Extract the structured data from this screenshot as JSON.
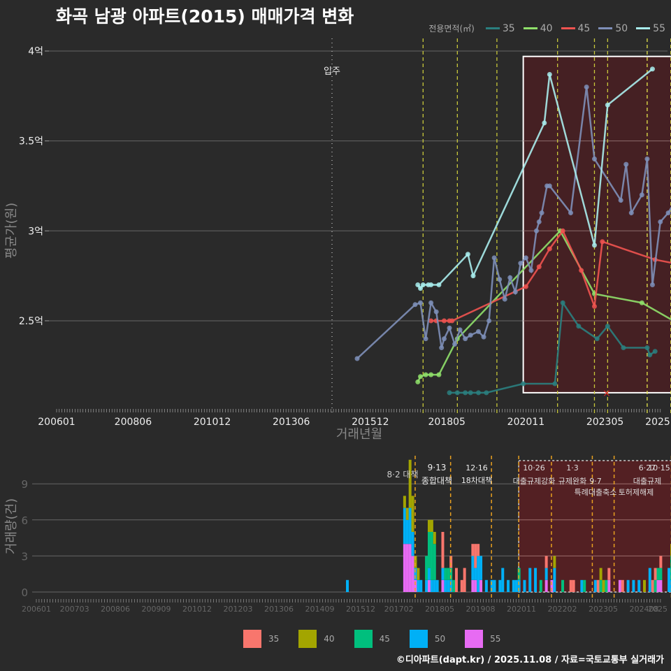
{
  "title": "화곡 남광 아파트(2015) 매매가격 변화",
  "legend_top": {
    "label": "전용면적(㎡)",
    "items": [
      {
        "label": "35",
        "color": "#2a7f7f"
      },
      {
        "label": "40",
        "color": "#8fe06a"
      },
      {
        "label": "45",
        "color": "#ef5350"
      },
      {
        "label": "50",
        "color": "#7e8fb8"
      },
      {
        "label": "55",
        "color": "#a8ecec"
      }
    ]
  },
  "legend_bottom": {
    "items": [
      {
        "label": "35",
        "color": "#f8766d"
      },
      {
        "label": "40",
        "color": "#a3a500"
      },
      {
        "label": "45",
        "color": "#00bf7d"
      },
      {
        "label": "50",
        "color": "#00b0f6"
      },
      {
        "label": "55",
        "color": "#e76bf3"
      }
    ]
  },
  "credit": "©디아파트(dapt.kr) / 2025.11.08 / 자료=국토교통부 실거래가",
  "chart_data": [
    {
      "type": "line",
      "title": "화곡 남광 아파트(2015) 매매가격 변화",
      "xlabel": "거래년월",
      "ylabel": "평균가(원)",
      "x_ticks": [
        "200601",
        "200806",
        "201012",
        "201306",
        "201512",
        "201805",
        "202011",
        "202305",
        "2025"
      ],
      "y_ticks": [
        "2.5억",
        "3억",
        "3.5억",
        "4억"
      ],
      "ylim": [
        2.0,
        4.0
      ],
      "unit": "억",
      "annotations": [
        {
          "label": "입주",
          "x": "201409",
          "style": "dotted"
        }
      ],
      "highlight_box": {
        "from": "202010",
        "to": "202510",
        "y_from": 2.1,
        "y_to": 3.97
      },
      "policy_lines": [
        "201708",
        "201809",
        "201912",
        "202111",
        "202301",
        "202306",
        "202409",
        "202506",
        "202510"
      ],
      "series": [
        {
          "name": "35",
          "color": "#2a7f7f",
          "points": [
            [
              "201806",
              2.1
            ],
            [
              "201809",
              2.1
            ],
            [
              "201812",
              2.1
            ],
            [
              "201902",
              2.1
            ],
            [
              "201905",
              2.1
            ],
            [
              "201908",
              2.1
            ],
            [
              "202010",
              2.15
            ],
            [
              "202110",
              2.15
            ],
            [
              "202201",
              2.6
            ],
            [
              "202207",
              2.47
            ],
            [
              "202302",
              2.4
            ],
            [
              "202306",
              2.47
            ],
            [
              "202312",
              2.35
            ],
            [
              "202409",
              2.35
            ],
            [
              "202410",
              2.31
            ],
            [
              "202412",
              2.33
            ]
          ]
        },
        {
          "name": "40",
          "color": "#8fe06a",
          "points": [
            [
              "201706",
              2.16
            ],
            [
              "201707",
              2.19
            ],
            [
              "201709",
              2.2
            ],
            [
              "201711",
              2.2
            ],
            [
              "201802",
              2.2
            ],
            [
              "201809",
              2.4
            ],
            [
              "202112",
              3.0
            ],
            [
              "202301",
              2.65
            ],
            [
              "202407",
              2.6
            ],
            [
              "202507",
              2.5
            ]
          ]
        },
        {
          "name": "45",
          "color": "#ef5350",
          "points": [
            [
              "201711",
              2.5
            ],
            [
              "201801",
              2.5
            ],
            [
              "201804",
              2.5
            ],
            [
              "201806",
              2.5
            ],
            [
              "201807",
              2.5
            ],
            [
              "202011",
              2.69
            ],
            [
              "202104",
              2.8
            ],
            [
              "202108",
              2.9
            ],
            [
              "202201",
              3.0
            ],
            [
              "202208",
              2.78
            ],
            [
              "202301",
              2.58
            ],
            [
              "202304",
              2.94
            ],
            [
              "202412",
              2.84
            ],
            [
              "202507",
              2.82
            ]
          ]
        },
        {
          "name": "50",
          "color": "#7e8fb8",
          "points": [
            [
              "201507",
              2.29
            ],
            [
              "201705",
              2.59
            ],
            [
              "201707",
              2.6
            ],
            [
              "201709",
              2.4
            ],
            [
              "201711",
              2.6
            ],
            [
              "201801",
              2.55
            ],
            [
              "201803",
              2.35
            ],
            [
              "201804",
              2.4
            ],
            [
              "201806",
              2.46
            ],
            [
              "201808",
              2.37
            ],
            [
              "201810",
              2.45
            ],
            [
              "201812",
              2.4
            ],
            [
              "201902",
              2.42
            ],
            [
              "201905",
              2.44
            ],
            [
              "201907",
              2.41
            ],
            [
              "201909",
              2.5
            ],
            [
              "201911",
              2.85
            ],
            [
              "202001",
              2.73
            ],
            [
              "202003",
              2.62
            ],
            [
              "202005",
              2.74
            ],
            [
              "202007",
              2.66
            ],
            [
              "202009",
              2.82
            ],
            [
              "202011",
              2.85
            ],
            [
              "202101",
              2.78
            ],
            [
              "202103",
              3.0
            ],
            [
              "202104",
              3.05
            ],
            [
              "202105",
              3.1
            ],
            [
              "202107",
              3.25
            ],
            [
              "202108",
              3.25
            ],
            [
              "202204",
              3.1
            ],
            [
              "202210",
              3.8
            ],
            [
              "202301",
              3.4
            ],
            [
              "202311",
              3.17
            ],
            [
              "202401",
              3.37
            ],
            [
              "202403",
              3.1
            ],
            [
              "202407",
              3.2
            ],
            [
              "202409",
              3.4
            ],
            [
              "202411",
              2.7
            ],
            [
              "202502",
              3.05
            ],
            [
              "202505",
              3.1
            ],
            [
              "202507",
              3.15
            ]
          ]
        },
        {
          "name": "55",
          "color": "#a8ecec",
          "points": [
            [
              "201706",
              2.7
            ],
            [
              "201707",
              2.68
            ],
            [
              "201708",
              2.7
            ],
            [
              "201710",
              2.7
            ],
            [
              "201711",
              2.7
            ],
            [
              "201802",
              2.7
            ],
            [
              "201901",
              2.87
            ],
            [
              "201903",
              2.75
            ],
            [
              "202106",
              3.6
            ],
            [
              "202108",
              3.87
            ],
            [
              "202301",
              2.92
            ],
            [
              "202306",
              3.7
            ],
            [
              "202411",
              3.9
            ]
          ]
        }
      ]
    },
    {
      "type": "bar",
      "stacked": true,
      "xlabel": "",
      "ylabel": "거래량(건)",
      "x_ticks": [
        "200601",
        "200703",
        "200806",
        "200909",
        "201012",
        "201203",
        "201306",
        "201409",
        "201512",
        "201702",
        "201805",
        "201908",
        "202011",
        "202202",
        "202305",
        "202408",
        "2025"
      ],
      "y_ticks": [
        0,
        3,
        6,
        9
      ],
      "ylim": [
        0,
        11
      ],
      "policy_annotations": [
        {
          "date": "201708",
          "label_top": "",
          "label": "8·2 대책"
        },
        {
          "date": "201809",
          "label_top": "9·13",
          "label": "종합대책"
        },
        {
          "date": "201912",
          "label_top": "12·16",
          "label": "18차대책"
        },
        {
          "date": "202010",
          "label_top": "",
          "label": ""
        },
        {
          "date": "202110",
          "label_top": "10·26",
          "label": "대출규제강화"
        },
        {
          "date": "202301",
          "label_top": "1·3",
          "label": "규제완화"
        },
        {
          "date": "202309",
          "label_top": "9·7",
          "label": "특례대출축소"
        },
        {
          "date": "202506",
          "label_top": "6·27",
          "label": "대출규제"
        },
        {
          "date": "202510",
          "label_top": "10·15",
          "label": "토허제해제"
        }
      ],
      "series_order": [
        "55",
        "50",
        "45",
        "40",
        "35"
      ],
      "bars": [
        {
          "x": "201507",
          "50": 1
        },
        {
          "x": "201704",
          "55": 4,
          "50": 3,
          "40": 1
        },
        {
          "x": "201705",
          "55": 4,
          "50": 2,
          "40": 1
        },
        {
          "x": "201706",
          "55": 4,
          "50": 3,
          "40": 4
        },
        {
          "x": "201707",
          "55": 3,
          "50": 2,
          "40": 3
        },
        {
          "x": "201708",
          "55": 1,
          "50": 1,
          "40": 1
        },
        {
          "x": "201709",
          "50": 1,
          "40": 1
        },
        {
          "x": "201710",
          "50": 1
        },
        {
          "x": "201712",
          "50": 1,
          "45": 2
        },
        {
          "x": "201801",
          "55": 1,
          "50": 1,
          "45": 3,
          "40": 1
        },
        {
          "x": "201802",
          "50": 1,
          "45": 4,
          "40": 1
        },
        {
          "x": "201803",
          "50": 1,
          "45": 3,
          "40": 1
        },
        {
          "x": "201804",
          "50": 1
        },
        {
          "x": "201806",
          "55": 1,
          "50": 1,
          "35": 3
        },
        {
          "x": "201807",
          "50": 1,
          "45": 1
        },
        {
          "x": "201808",
          "50": 1,
          "45": 1
        },
        {
          "x": "201809",
          "50": 1,
          "45": 1,
          "35": 1
        },
        {
          "x": "201810",
          "45": 1
        },
        {
          "x": "201811",
          "35": 2
        },
        {
          "x": "201901",
          "35": 1
        },
        {
          "x": "201902",
          "35": 2
        },
        {
          "x": "201905",
          "55": 1,
          "50": 2,
          "35": 1
        },
        {
          "x": "201906",
          "55": 1,
          "50": 1,
          "35": 2
        },
        {
          "x": "201907",
          "50": 3,
          "35": 1
        },
        {
          "x": "201908",
          "55": 1,
          "50": 2
        },
        {
          "x": "201910",
          "50": 1
        },
        {
          "x": "201912",
          "50": 1
        },
        {
          "x": "202001",
          "50": 1
        },
        {
          "x": "202003",
          "50": 1
        },
        {
          "x": "202004",
          "50": 2
        },
        {
          "x": "202006",
          "50": 1
        },
        {
          "x": "202008",
          "50": 1
        },
        {
          "x": "202009",
          "50": 1
        },
        {
          "x": "202010",
          "50": 1,
          "45": 1
        },
        {
          "x": "202012",
          "50": 1
        },
        {
          "x": "202102",
          "50": 2
        },
        {
          "x": "202104",
          "50": 2
        },
        {
          "x": "202106",
          "45": 1
        },
        {
          "x": "202108",
          "55": 1,
          "50": 1,
          "35": 1
        },
        {
          "x": "202110",
          "55": 1
        },
        {
          "x": "202111",
          "50": 2,
          "40": 1
        },
        {
          "x": "202202",
          "45": 1
        },
        {
          "x": "202205",
          "35": 1
        },
        {
          "x": "202206",
          "35": 1
        },
        {
          "x": "202209",
          "50": 1
        },
        {
          "x": "202210",
          "45": 1
        },
        {
          "x": "202302",
          "50": 1
        },
        {
          "x": "202303",
          "35": 1
        },
        {
          "x": "202304",
          "45": 1,
          "40": 1
        },
        {
          "x": "202305",
          "40": 1
        },
        {
          "x": "202306",
          "45": 1
        },
        {
          "x": "202307",
          "55": 1,
          "35": 1
        },
        {
          "x": "202311",
          "55": 1
        },
        {
          "x": "202312",
          "35": 1
        },
        {
          "x": "202402",
          "50": 1
        },
        {
          "x": "202404",
          "50": 1
        },
        {
          "x": "202406",
          "50": 1
        },
        {
          "x": "202408",
          "40": 1
        },
        {
          "x": "202410",
          "50": 2
        },
        {
          "x": "202411",
          "35": 1
        },
        {
          "x": "202412",
          "45": 1,
          "35": 1
        },
        {
          "x": "202501",
          "55": 1,
          "45": 1
        },
        {
          "x": "202502",
          "55": 1,
          "45": 1,
          "35": 1
        },
        {
          "x": "202505",
          "50": 2
        },
        {
          "x": "202506",
          "45": 2,
          "40": 1,
          "50": 1
        },
        {
          "x": "202507",
          "40": 1,
          "45": 2,
          "50": 1
        },
        {
          "x": "202508",
          "50": 1
        }
      ]
    }
  ]
}
